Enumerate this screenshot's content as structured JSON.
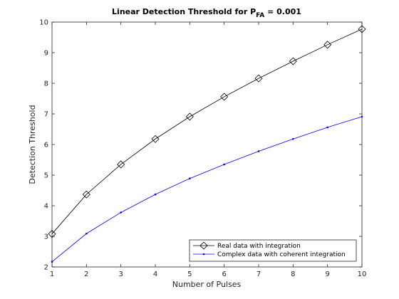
{
  "chart_data": {
    "type": "line",
    "title": {
      "main": "Linear Detection Threshold for P",
      "subscript": "FA",
      "suffix": " = 0.001"
    },
    "xlabel": "Number of Pulses",
    "ylabel": "Detection Threshold",
    "xlim": [
      1,
      10
    ],
    "ylim": [
      2,
      10
    ],
    "x_ticks": [
      "1",
      "2",
      "3",
      "4",
      "5",
      "6",
      "7",
      "8",
      "9",
      "10"
    ],
    "y_ticks": [
      "2",
      "3",
      "4",
      "5",
      "6",
      "7",
      "8",
      "9",
      "10"
    ],
    "grid": false,
    "legend_position": "bottom-right",
    "x": [
      1,
      2,
      3,
      4,
      5,
      6,
      7,
      8,
      9,
      10
    ],
    "series": [
      {
        "name": "Real data with integration",
        "color": "#000000",
        "marker": "diamond",
        "values": [
          3.08,
          4.37,
          5.35,
          6.18,
          6.91,
          7.56,
          8.16,
          8.72,
          9.26,
          9.77
        ]
      },
      {
        "name": "Complex data with coherent integration",
        "color": "#0000ff",
        "marker": "point",
        "values": [
          2.17,
          3.09,
          3.78,
          4.37,
          4.89,
          5.35,
          5.78,
          6.18,
          6.56,
          6.91
        ]
      }
    ]
  }
}
